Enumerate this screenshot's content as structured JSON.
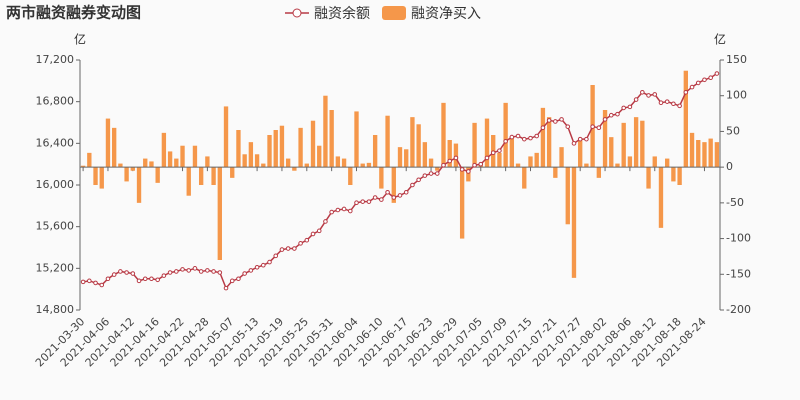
{
  "chart_data": {
    "type": "bar-line",
    "title": "两市融资融券变动图",
    "y_unit": "亿",
    "y2_unit": "亿",
    "categories": [
      "2021-03-30",
      null,
      null,
      null,
      "2021-04-06",
      null,
      null,
      null,
      "2021-04-12",
      null,
      null,
      null,
      "2021-04-16",
      null,
      null,
      null,
      "2021-04-22",
      null,
      null,
      null,
      "2021-04-28",
      null,
      null,
      null,
      "2021-05-07",
      null,
      null,
      null,
      "2021-05-13",
      null,
      null,
      null,
      "2021-05-19",
      null,
      null,
      null,
      "2021-05-25",
      null,
      null,
      null,
      "2021-05-31",
      null,
      null,
      null,
      "2021-06-04",
      null,
      null,
      null,
      "2021-06-10",
      null,
      null,
      null,
      "2021-06-17",
      null,
      null,
      null,
      "2021-06-23",
      null,
      null,
      null,
      "2021-06-29",
      null,
      null,
      null,
      "2021-07-05",
      null,
      null,
      null,
      "2021-07-09",
      null,
      null,
      null,
      "2021-07-15",
      null,
      null,
      null,
      "2021-07-21",
      null,
      null,
      null,
      "2021-07-27",
      null,
      null,
      null,
      "2021-08-02",
      null,
      null,
      null,
      "2021-08-06",
      null,
      null,
      null,
      "2021-08-12",
      null,
      null,
      null,
      "2021-08-18",
      null,
      null,
      null,
      "2021-08-24",
      null,
      null
    ],
    "series": [
      {
        "name": "融资余额",
        "type": "line",
        "color": "#b83a45",
        "axis": "y",
        "values": [
          15070,
          15080,
          15060,
          15040,
          15100,
          15140,
          15170,
          15160,
          15150,
          15080,
          15100,
          15100,
          15090,
          15130,
          15160,
          15170,
          15190,
          15180,
          15200,
          15170,
          15180,
          15170,
          15160,
          15010,
          15080,
          15100,
          15150,
          15180,
          15210,
          15230,
          15260,
          15320,
          15380,
          15390,
          15390,
          15440,
          15470,
          15530,
          15560,
          15650,
          15740,
          15760,
          15770,
          15750,
          15830,
          15840,
          15840,
          15880,
          15860,
          15930,
          15880,
          15900,
          15930,
          16000,
          16050,
          16090,
          16110,
          16110,
          16190,
          16230,
          16260,
          16150,
          16130,
          16190,
          16200,
          16260,
          16310,
          16330,
          16420,
          16460,
          16470,
          16440,
          16450,
          16470,
          16550,
          16620,
          16610,
          16630,
          16560,
          16400,
          16440,
          16440,
          16560,
          16550,
          16630,
          16670,
          16680,
          16740,
          16750,
          16820,
          16890,
          16860,
          16870,
          16790,
          16800,
          16780,
          16760,
          16890,
          16940,
          16980,
          17010,
          17030,
          17070
        ]
      },
      {
        "name": "融资净买入",
        "type": "bar",
        "color": "#f5974a",
        "axis": "y2",
        "values": [
          2,
          20,
          -25,
          -30,
          68,
          55,
          5,
          -20,
          -5,
          -50,
          12,
          8,
          -22,
          48,
          22,
          12,
          30,
          -40,
          30,
          -25,
          15,
          -25,
          -130,
          85,
          -15,
          52,
          18,
          35,
          18,
          5,
          45,
          52,
          58,
          12,
          -5,
          55,
          5,
          65,
          30,
          100,
          80,
          15,
          12,
          -25,
          78,
          5,
          6,
          45,
          -30,
          72,
          -50,
          28,
          25,
          70,
          60,
          35,
          12,
          -5,
          90,
          38,
          33,
          -100,
          -20,
          62,
          5,
          68,
          45,
          20,
          90,
          40,
          5,
          -30,
          15,
          20,
          83,
          70,
          -15,
          28,
          -80,
          -155,
          38,
          5,
          115,
          -15,
          80,
          42,
          5,
          62,
          15,
          70,
          65,
          -30,
          15,
          -85,
          12,
          -20,
          -25,
          135,
          48,
          38,
          35,
          40,
          35
        ]
      }
    ],
    "ylim": [
      14800,
      17200
    ],
    "yticks": [
      {
        "value": 14800,
        "label": "14,800"
      },
      {
        "value": 15200,
        "label": "15,200"
      },
      {
        "value": 15600,
        "label": "15,600"
      },
      {
        "value": 16000,
        "label": "16,000"
      },
      {
        "value": 16400,
        "label": "16,400"
      },
      {
        "value": 16800,
        "label": "16,800"
      },
      {
        "value": 17200,
        "label": "17,200"
      }
    ],
    "y2lim": [
      -200,
      150
    ],
    "y2ticks": [
      -200,
      -150,
      -100,
      -50,
      0,
      50,
      100,
      150
    ],
    "grid": false,
    "legend": "top"
  }
}
